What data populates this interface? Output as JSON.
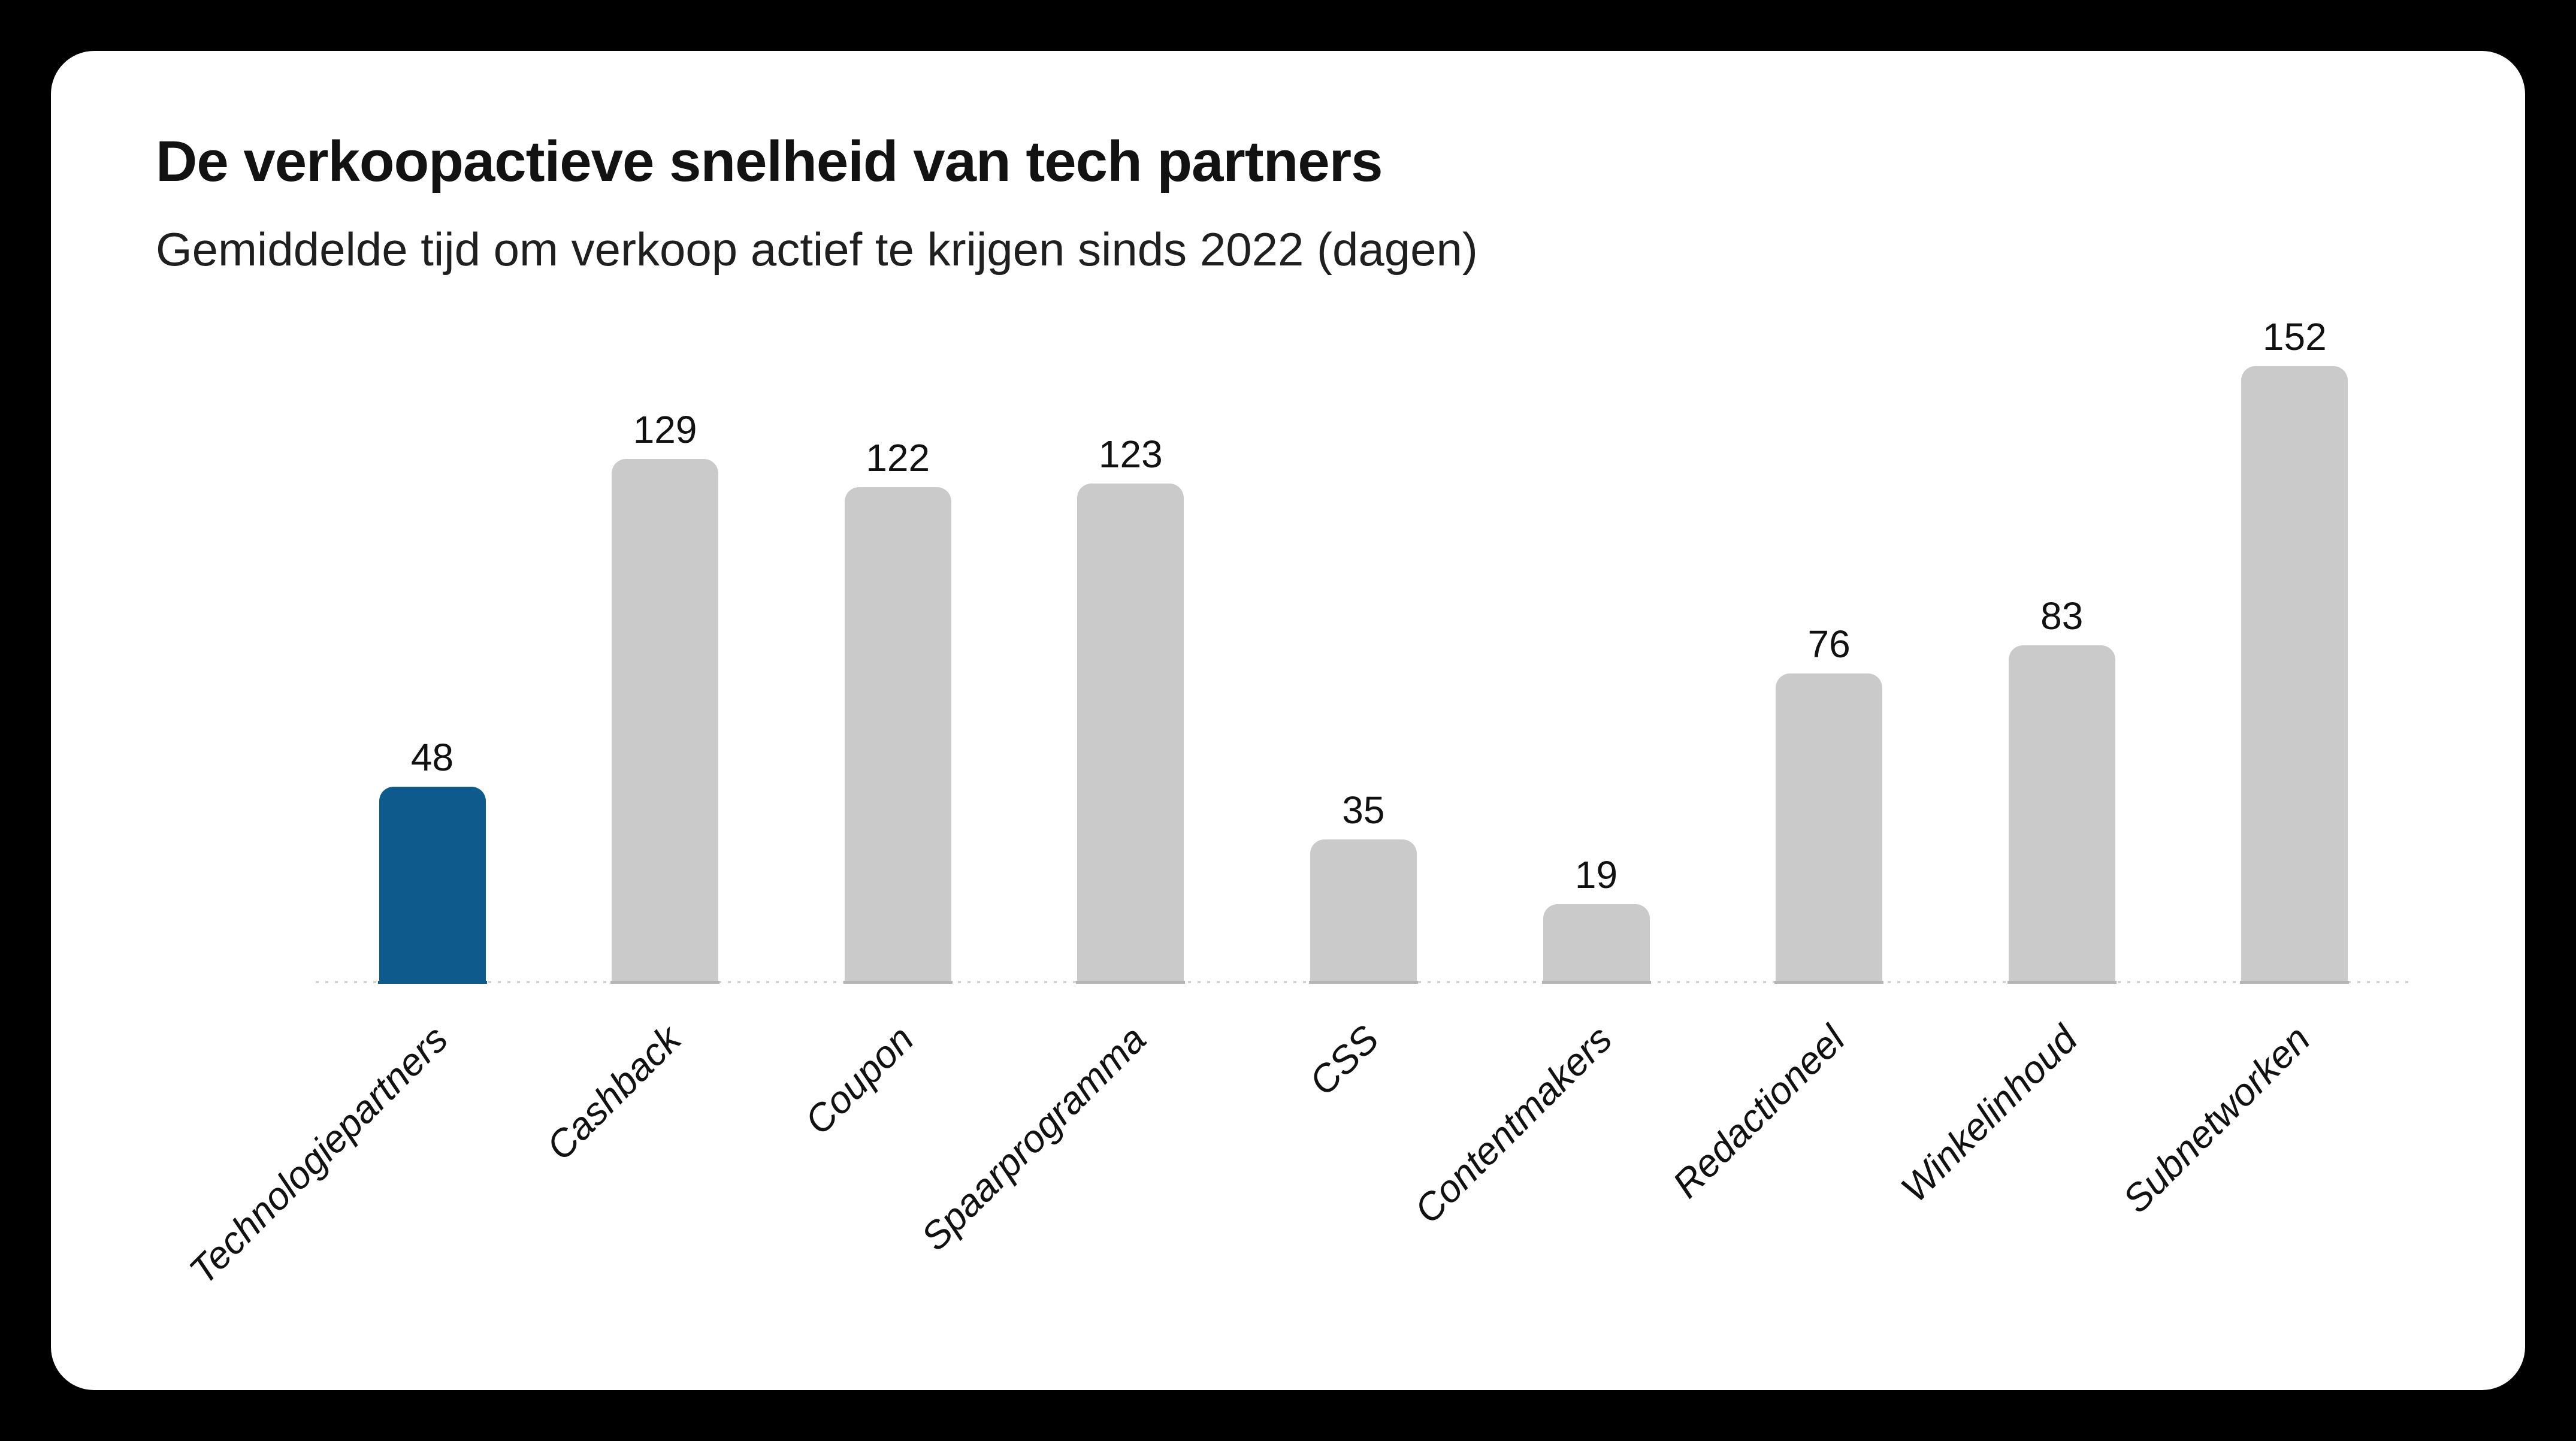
{
  "page": {
    "background": "#000000",
    "card_background": "#ffffff"
  },
  "header": {
    "title": "De verkoopactieve snelheid van tech partners",
    "subtitle": "Gemiddelde tijd om verkoop actief te krijgen sinds 2022 (dagen)"
  },
  "chart_data": {
    "type": "bar",
    "title": "De verkoopactieve snelheid van tech partners",
    "subtitle": "Gemiddelde tijd om verkoop actief te krijgen sinds 2022 (dagen)",
    "categories": [
      "Technologiepartners",
      "Cashback",
      "Coupon",
      "Spaarprogramma",
      "CSS",
      "Contentmakers",
      "Redactioneel",
      "Winkelinhoud",
      "Subnetworken"
    ],
    "values": [
      48,
      129,
      122,
      123,
      35,
      19,
      76,
      83,
      152
    ],
    "unit": "dagen",
    "highlight_index": 0,
    "value_labels_shown": true,
    "tick_label_rotation_deg": 45,
    "tick_label_style": "italic",
    "grid": false,
    "legend": false,
    "ylim": [
      0,
      160
    ],
    "xlabel": "",
    "ylabel": "",
    "colors": {
      "bar_default": "#cacaca",
      "bar_highlight": "#0f5a8c",
      "underline_default": "#b5b5b5",
      "underline_highlight": "#0f5a8c",
      "baseline": "#d3d3d3",
      "value_label": "#111111",
      "tick_label": "#111111",
      "title": "#121212",
      "subtitle": "#1f1f1f"
    }
  }
}
